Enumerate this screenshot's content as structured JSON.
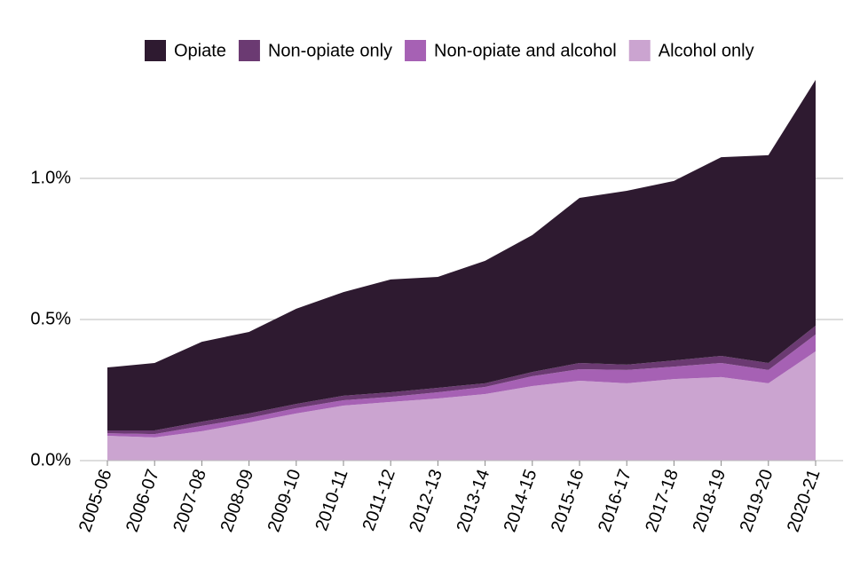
{
  "chart_data": {
    "type": "stacked_area",
    "categories": [
      "2005-06",
      "2006-07",
      "2007-08",
      "2008-09",
      "2009-10",
      "2010-11",
      "2011-12",
      "2012-13",
      "2013-14",
      "2014-15",
      "2015-16",
      "2016-17",
      "2017-18",
      "2018-19",
      "2019-20",
      "2020-21"
    ],
    "series": [
      {
        "name": "Opiate",
        "color": "#2e1a30",
        "values": [
          0.223,
          0.239,
          0.283,
          0.289,
          0.337,
          0.367,
          0.4,
          0.393,
          0.434,
          0.485,
          0.585,
          0.616,
          0.636,
          0.704,
          0.736,
          0.871
        ]
      },
      {
        "name": "Non-opiate only",
        "color": "#6b3a72",
        "values": [
          0.01,
          0.013,
          0.015,
          0.016,
          0.015,
          0.016,
          0.016,
          0.016,
          0.013,
          0.015,
          0.022,
          0.019,
          0.022,
          0.025,
          0.025,
          0.031
        ]
      },
      {
        "name": "Non-opiate and alcohol",
        "color": "#a661b4",
        "values": [
          0.009,
          0.012,
          0.019,
          0.016,
          0.019,
          0.019,
          0.018,
          0.022,
          0.025,
          0.035,
          0.041,
          0.047,
          0.044,
          0.05,
          0.047,
          0.06
        ]
      },
      {
        "name": "Alcohol only",
        "color": "#cba4d0",
        "values": [
          0.088,
          0.082,
          0.104,
          0.135,
          0.167,
          0.195,
          0.208,
          0.22,
          0.236,
          0.264,
          0.283,
          0.274,
          0.289,
          0.296,
          0.274,
          0.387
        ]
      }
    ],
    "ylim": [
      0,
      1.4
    ],
    "yticks": [
      {
        "value": 0,
        "label": "0.0%"
      },
      {
        "value": 0.5,
        "label": "0.5%"
      },
      {
        "value": 1,
        "label": "1.0%"
      }
    ],
    "grid": true,
    "legend": "top"
  }
}
